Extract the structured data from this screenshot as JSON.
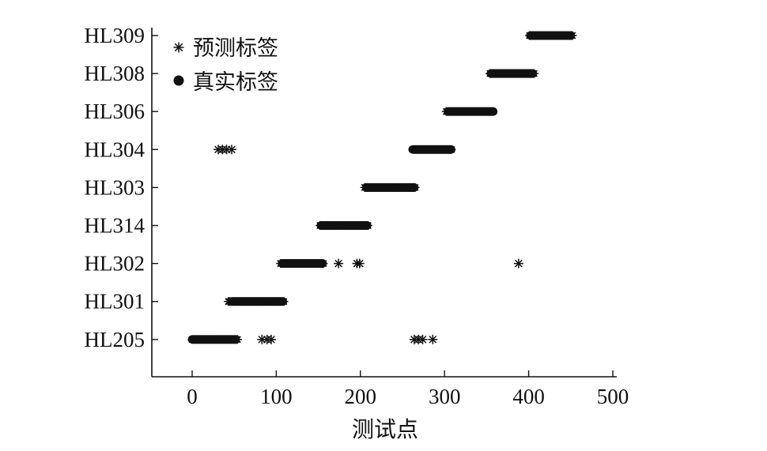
{
  "chart_data": {
    "type": "scatter",
    "xlabel": "测试点",
    "ylabel": "",
    "xlim": [
      -45,
      500
    ],
    "xticks": [
      0,
      100,
      200,
      300,
      400,
      500
    ],
    "categories": [
      "HL205",
      "HL301",
      "HL302",
      "HL314",
      "HL303",
      "HL304",
      "HL306",
      "HL308",
      "HL309"
    ],
    "legend": {
      "position": "top-left"
    },
    "grid": false,
    "series": [
      {
        "name": "预测标签",
        "marker": "asterisk",
        "color": "#111111",
        "segments": [
          {
            "category": "HL205",
            "from": 0,
            "to": 55
          },
          {
            "category": "HL301",
            "from": 43,
            "to": 110
          },
          {
            "category": "HL302",
            "from": 105,
            "to": 157
          },
          {
            "category": "HL314",
            "from": 152,
            "to": 210
          },
          {
            "category": "HL303",
            "from": 205,
            "to": 266
          },
          {
            "category": "HL304",
            "from": 263,
            "to": 308
          },
          {
            "category": "HL306",
            "from": 302,
            "to": 358
          },
          {
            "category": "HL308",
            "from": 354,
            "to": 407
          },
          {
            "category": "HL309",
            "from": 401,
            "to": 452
          }
        ],
        "points": [
          {
            "category": "HL205",
            "x": 83
          },
          {
            "category": "HL205",
            "x": 89
          },
          {
            "category": "HL205",
            "x": 94
          },
          {
            "category": "HL205",
            "x": 264
          },
          {
            "category": "HL205",
            "x": 269
          },
          {
            "category": "HL205",
            "x": 274
          },
          {
            "category": "HL205",
            "x": 286
          },
          {
            "category": "HL302",
            "x": 174
          },
          {
            "category": "HL302",
            "x": 196
          },
          {
            "category": "HL302",
            "x": 199
          },
          {
            "category": "HL302",
            "x": 388
          },
          {
            "category": "HL304",
            "x": 31
          },
          {
            "category": "HL304",
            "x": 36
          },
          {
            "category": "HL304",
            "x": 41
          },
          {
            "category": "HL304",
            "x": 47
          }
        ]
      },
      {
        "name": "真实标签",
        "marker": "dot",
        "color": "#111111",
        "segments": [
          {
            "category": "HL205",
            "from": 0,
            "to": 52
          },
          {
            "category": "HL301",
            "from": 49,
            "to": 108
          },
          {
            "category": "HL302",
            "from": 107,
            "to": 155
          },
          {
            "category": "HL314",
            "from": 153,
            "to": 208
          },
          {
            "category": "HL303",
            "from": 207,
            "to": 264
          },
          {
            "category": "HL304",
            "from": 262,
            "to": 308
          },
          {
            "category": "HL306",
            "from": 304,
            "to": 358
          },
          {
            "category": "HL308",
            "from": 355,
            "to": 405
          },
          {
            "category": "HL309",
            "from": 402,
            "to": 450
          }
        ],
        "points": []
      }
    ]
  }
}
